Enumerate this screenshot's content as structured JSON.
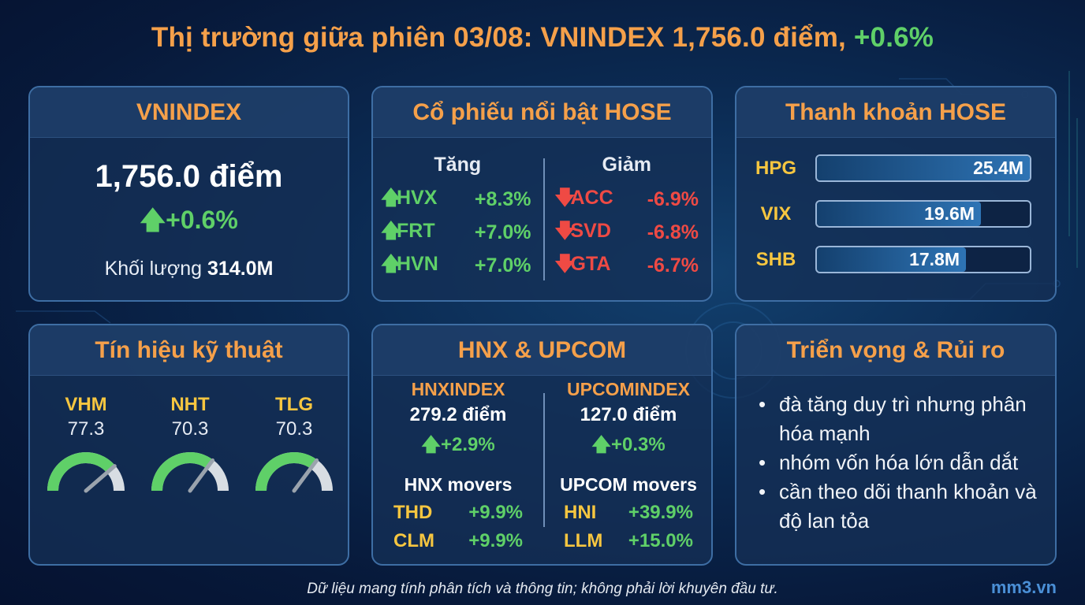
{
  "title": {
    "main": "Thị trường giữa phiên 03/08: VNINDEX 1,756.0 điểm, ",
    "pct": "+0.6%"
  },
  "vnindex": {
    "heading": "VNINDEX",
    "points": "1,756.0 điểm",
    "change": "+0.6%",
    "volume_label": "Khối lượng ",
    "volume_value": "314.0M"
  },
  "hose_movers": {
    "heading": "Cổ phiếu nổi bật HOSE",
    "gainers_label": "Tăng",
    "losers_label": "Giảm",
    "gainers": [
      {
        "ticker": "HVX",
        "change": "+8.3%"
      },
      {
        "ticker": "FRT",
        "change": "+7.0%"
      },
      {
        "ticker": "HVN",
        "change": "+7.0%"
      }
    ],
    "losers": [
      {
        "ticker": "ACC",
        "change": "-6.9%"
      },
      {
        "ticker": "SVD",
        "change": "-6.8%"
      },
      {
        "ticker": "GTA",
        "change": "-6.7%"
      }
    ]
  },
  "liquidity": {
    "heading": "Thanh khoản HOSE",
    "items": [
      {
        "ticker": "HPG",
        "value": "25.4M",
        "amount": 25.4
      },
      {
        "ticker": "VIX",
        "value": "19.6M",
        "amount": 19.6
      },
      {
        "ticker": "SHB",
        "value": "17.8M",
        "amount": 17.8
      }
    ],
    "max": 25.4
  },
  "technical": {
    "heading": "Tín hiệu kỹ thuật",
    "items": [
      {
        "ticker": "VHM",
        "value": "77.3",
        "level": 77.3
      },
      {
        "ticker": "NHT",
        "value": "70.3",
        "level": 70.3
      },
      {
        "ticker": "TLG",
        "value": "70.3",
        "level": 70.3
      }
    ]
  },
  "hnx_upcom": {
    "heading": "HNX & UPCOM",
    "hnx": {
      "name": "HNXINDEX",
      "points": "279.2 điểm",
      "change": "+2.9%",
      "movers_title": "HNX movers",
      "movers": [
        {
          "ticker": "THD",
          "change": "+9.9%"
        },
        {
          "ticker": "CLM",
          "change": "+9.9%"
        }
      ]
    },
    "upcom": {
      "name": "UPCOMINDEX",
      "points": "127.0 điểm",
      "change": "+0.3%",
      "movers_title": "UPCOM movers",
      "movers": [
        {
          "ticker": "HNI",
          "change": "+39.9%"
        },
        {
          "ticker": "LLM",
          "change": "+15.0%"
        }
      ]
    }
  },
  "outlook": {
    "heading": "Triển vọng & Rủi ro",
    "items": [
      "đà tăng duy trì nhưng phân hóa mạnh",
      "nhóm vốn hóa lớn dẫn dắt",
      "cần theo dõi thanh khoản và độ lan tỏa"
    ]
  },
  "footer": {
    "disclaimer": "Dữ liệu mang tính phân tích và thông tin; không phải lời khuyên đầu tư.",
    "brand": "mm3.vn"
  },
  "colors": {
    "accent": "#f5a04a",
    "up": "#5fd068",
    "down": "#ef4a44",
    "ticker": "#f6c640"
  },
  "icons": {
    "up": "arrow-up-icon",
    "down": "arrow-down-icon"
  }
}
